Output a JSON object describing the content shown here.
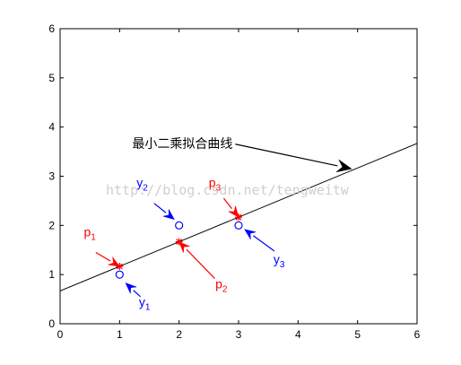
{
  "chart_data": {
    "type": "line",
    "xlim": [
      0,
      6
    ],
    "ylim": [
      0,
      6
    ],
    "x_ticks": [
      "0",
      "1",
      "2",
      "3",
      "4",
      "5",
      "6"
    ],
    "y_ticks": [
      "0",
      "1",
      "2",
      "3",
      "4",
      "5",
      "6"
    ],
    "grid": false,
    "series": [
      {
        "kind": "line",
        "x": [
          0,
          6
        ],
        "y": [
          0.667,
          3.667
        ],
        "color": "#000000"
      },
      {
        "kind": "observed",
        "marker": "circle",
        "color": "#0000ff",
        "x": [
          1,
          2,
          3
        ],
        "y": [
          1,
          2,
          2
        ]
      },
      {
        "kind": "fitted",
        "marker": "star",
        "color": "#ff0000",
        "x": [
          1,
          2,
          3
        ],
        "y": [
          1.167,
          1.667,
          2.167
        ]
      }
    ],
    "annotations": [
      {
        "id": "fit",
        "text": "最小二乘拟合曲线",
        "color": "#000000",
        "arrow_to": [
          4.9,
          3.15
        ],
        "text_at": [
          2.9,
          3.67
        ]
      },
      {
        "id": "p1",
        "base": "p",
        "sub": "1",
        "color": "#ff0000",
        "arrow_to": [
          1.0,
          1.167
        ],
        "arrow_from": [
          0.6,
          1.45
        ],
        "text_at": [
          0.5,
          1.78
        ]
      },
      {
        "id": "p2",
        "base": "p",
        "sub": "2",
        "color": "#ff0000",
        "arrow_to": [
          2.0,
          1.667
        ],
        "arrow_from": [
          2.6,
          0.92
        ],
        "text_at": [
          2.71,
          0.72
        ]
      },
      {
        "id": "p3",
        "base": "p",
        "sub": "3",
        "color": "#ff0000",
        "arrow_to": [
          3.0,
          2.167
        ],
        "arrow_from": [
          2.75,
          2.55
        ],
        "text_at": [
          2.6,
          2.78
        ]
      },
      {
        "id": "y1",
        "base": "y",
        "sub": "1",
        "color": "#0000ff",
        "arrow_to": [
          1.1,
          0.83
        ],
        "arrow_from": [
          1.35,
          0.55
        ],
        "text_at": [
          1.42,
          0.36
        ]
      },
      {
        "id": "y2",
        "base": "y",
        "sub": "2",
        "color": "#0000ff",
        "arrow_to": [
          1.92,
          2.12
        ],
        "arrow_from": [
          1.58,
          2.45
        ],
        "text_at": [
          1.38,
          2.78
        ]
      },
      {
        "id": "y3",
        "base": "y",
        "sub": "3",
        "color": "#0000ff",
        "arrow_to": [
          3.1,
          1.92
        ],
        "arrow_from": [
          3.6,
          1.48
        ],
        "text_at": [
          3.68,
          1.22
        ]
      }
    ],
    "watermark": "http://blog.csdn.net/tengweitw"
  }
}
